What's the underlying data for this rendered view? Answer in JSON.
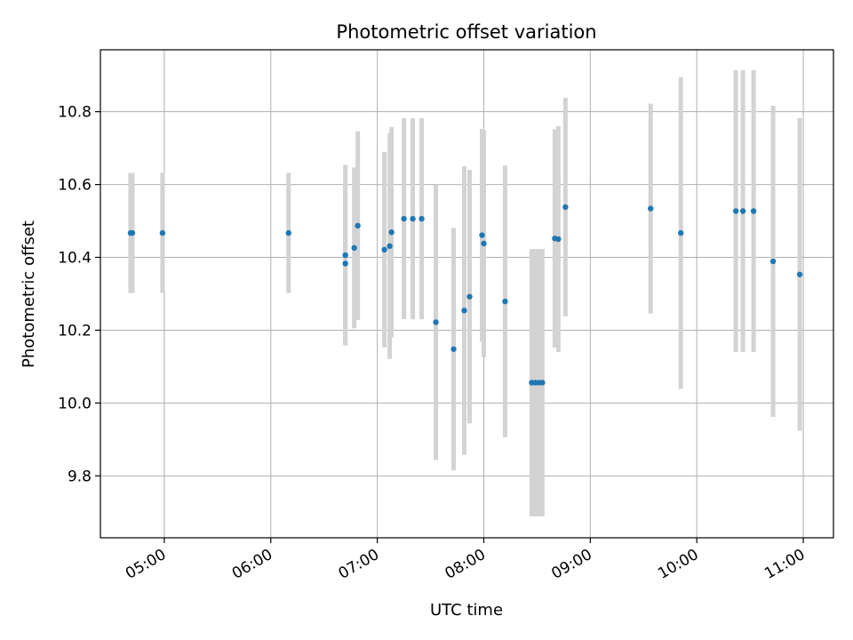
{
  "chart_data": {
    "type": "scatter",
    "title": "Photometric offset variation",
    "xlabel": "UTC time",
    "ylabel": "Photometric offset",
    "xlim": [
      "04:24",
      "11:17"
    ],
    "ylim": [
      9.63,
      10.97
    ],
    "x_ticks": [
      "05:00",
      "06:00",
      "07:00",
      "08:00",
      "09:00",
      "10:00",
      "11:00"
    ],
    "y_ticks": [
      9.8,
      10.0,
      10.2,
      10.4,
      10.6,
      10.8
    ],
    "grid": true,
    "error_bars": true,
    "colors": {
      "points": "#1f77b4",
      "error_bars": "#d3d3d3",
      "grid": "#b0b0b0"
    },
    "points": [
      {
        "x": "04:41",
        "y": 10.467,
        "err": 0.165
      },
      {
        "x": "04:42",
        "y": 10.467,
        "err": 0.165
      },
      {
        "x": "04:59",
        "y": 10.467,
        "err": 0.165
      },
      {
        "x": "06:10",
        "y": 10.467,
        "err": 0.165
      },
      {
        "x": "06:42",
        "y": 10.406,
        "err": 0.248
      },
      {
        "x": "06:42",
        "y": 10.383,
        "err": 0.225
      },
      {
        "x": "06:47",
        "y": 10.426,
        "err": 0.221
      },
      {
        "x": "06:49",
        "y": 10.487,
        "err": 0.259
      },
      {
        "x": "07:04",
        "y": 10.421,
        "err": 0.268
      },
      {
        "x": "07:07",
        "y": 10.431,
        "err": 0.31
      },
      {
        "x": "07:08",
        "y": 10.469,
        "err": 0.289
      },
      {
        "x": "07:15",
        "y": 10.506,
        "err": 0.276
      },
      {
        "x": "07:20",
        "y": 10.506,
        "err": 0.276
      },
      {
        "x": "07:25",
        "y": 10.506,
        "err": 0.276
      },
      {
        "x": "07:33",
        "y": 10.222,
        "err": 0.378
      },
      {
        "x": "07:43",
        "y": 10.148,
        "err": 0.333
      },
      {
        "x": "07:49",
        "y": 10.254,
        "err": 0.396
      },
      {
        "x": "07:52",
        "y": 10.292,
        "err": 0.348
      },
      {
        "x": "07:59",
        "y": 10.461,
        "err": 0.292
      },
      {
        "x": "08:00",
        "y": 10.438,
        "err": 0.312
      },
      {
        "x": "08:12",
        "y": 10.279,
        "err": 0.373
      },
      {
        "x": "08:27",
        "y": 10.056,
        "err": 0.367
      },
      {
        "x": "08:29",
        "y": 10.056,
        "err": 0.367
      },
      {
        "x": "08:31",
        "y": 10.056,
        "err": 0.367
      },
      {
        "x": "08:33",
        "y": 10.056,
        "err": 0.367
      },
      {
        "x": "08:40",
        "y": 10.452,
        "err": 0.3
      },
      {
        "x": "08:42",
        "y": 10.45,
        "err": 0.31
      },
      {
        "x": "08:46",
        "y": 10.538,
        "err": 0.3
      },
      {
        "x": "09:34",
        "y": 10.534,
        "err": 0.288
      },
      {
        "x": "09:51",
        "y": 10.467,
        "err": 0.428
      },
      {
        "x": "10:22",
        "y": 10.527,
        "err": 0.387
      },
      {
        "x": "10:26",
        "y": 10.527,
        "err": 0.387
      },
      {
        "x": "10:32",
        "y": 10.527,
        "err": 0.387
      },
      {
        "x": "10:43",
        "y": 10.389,
        "err": 0.427
      },
      {
        "x": "10:58",
        "y": 10.353,
        "err": 0.429
      }
    ]
  }
}
